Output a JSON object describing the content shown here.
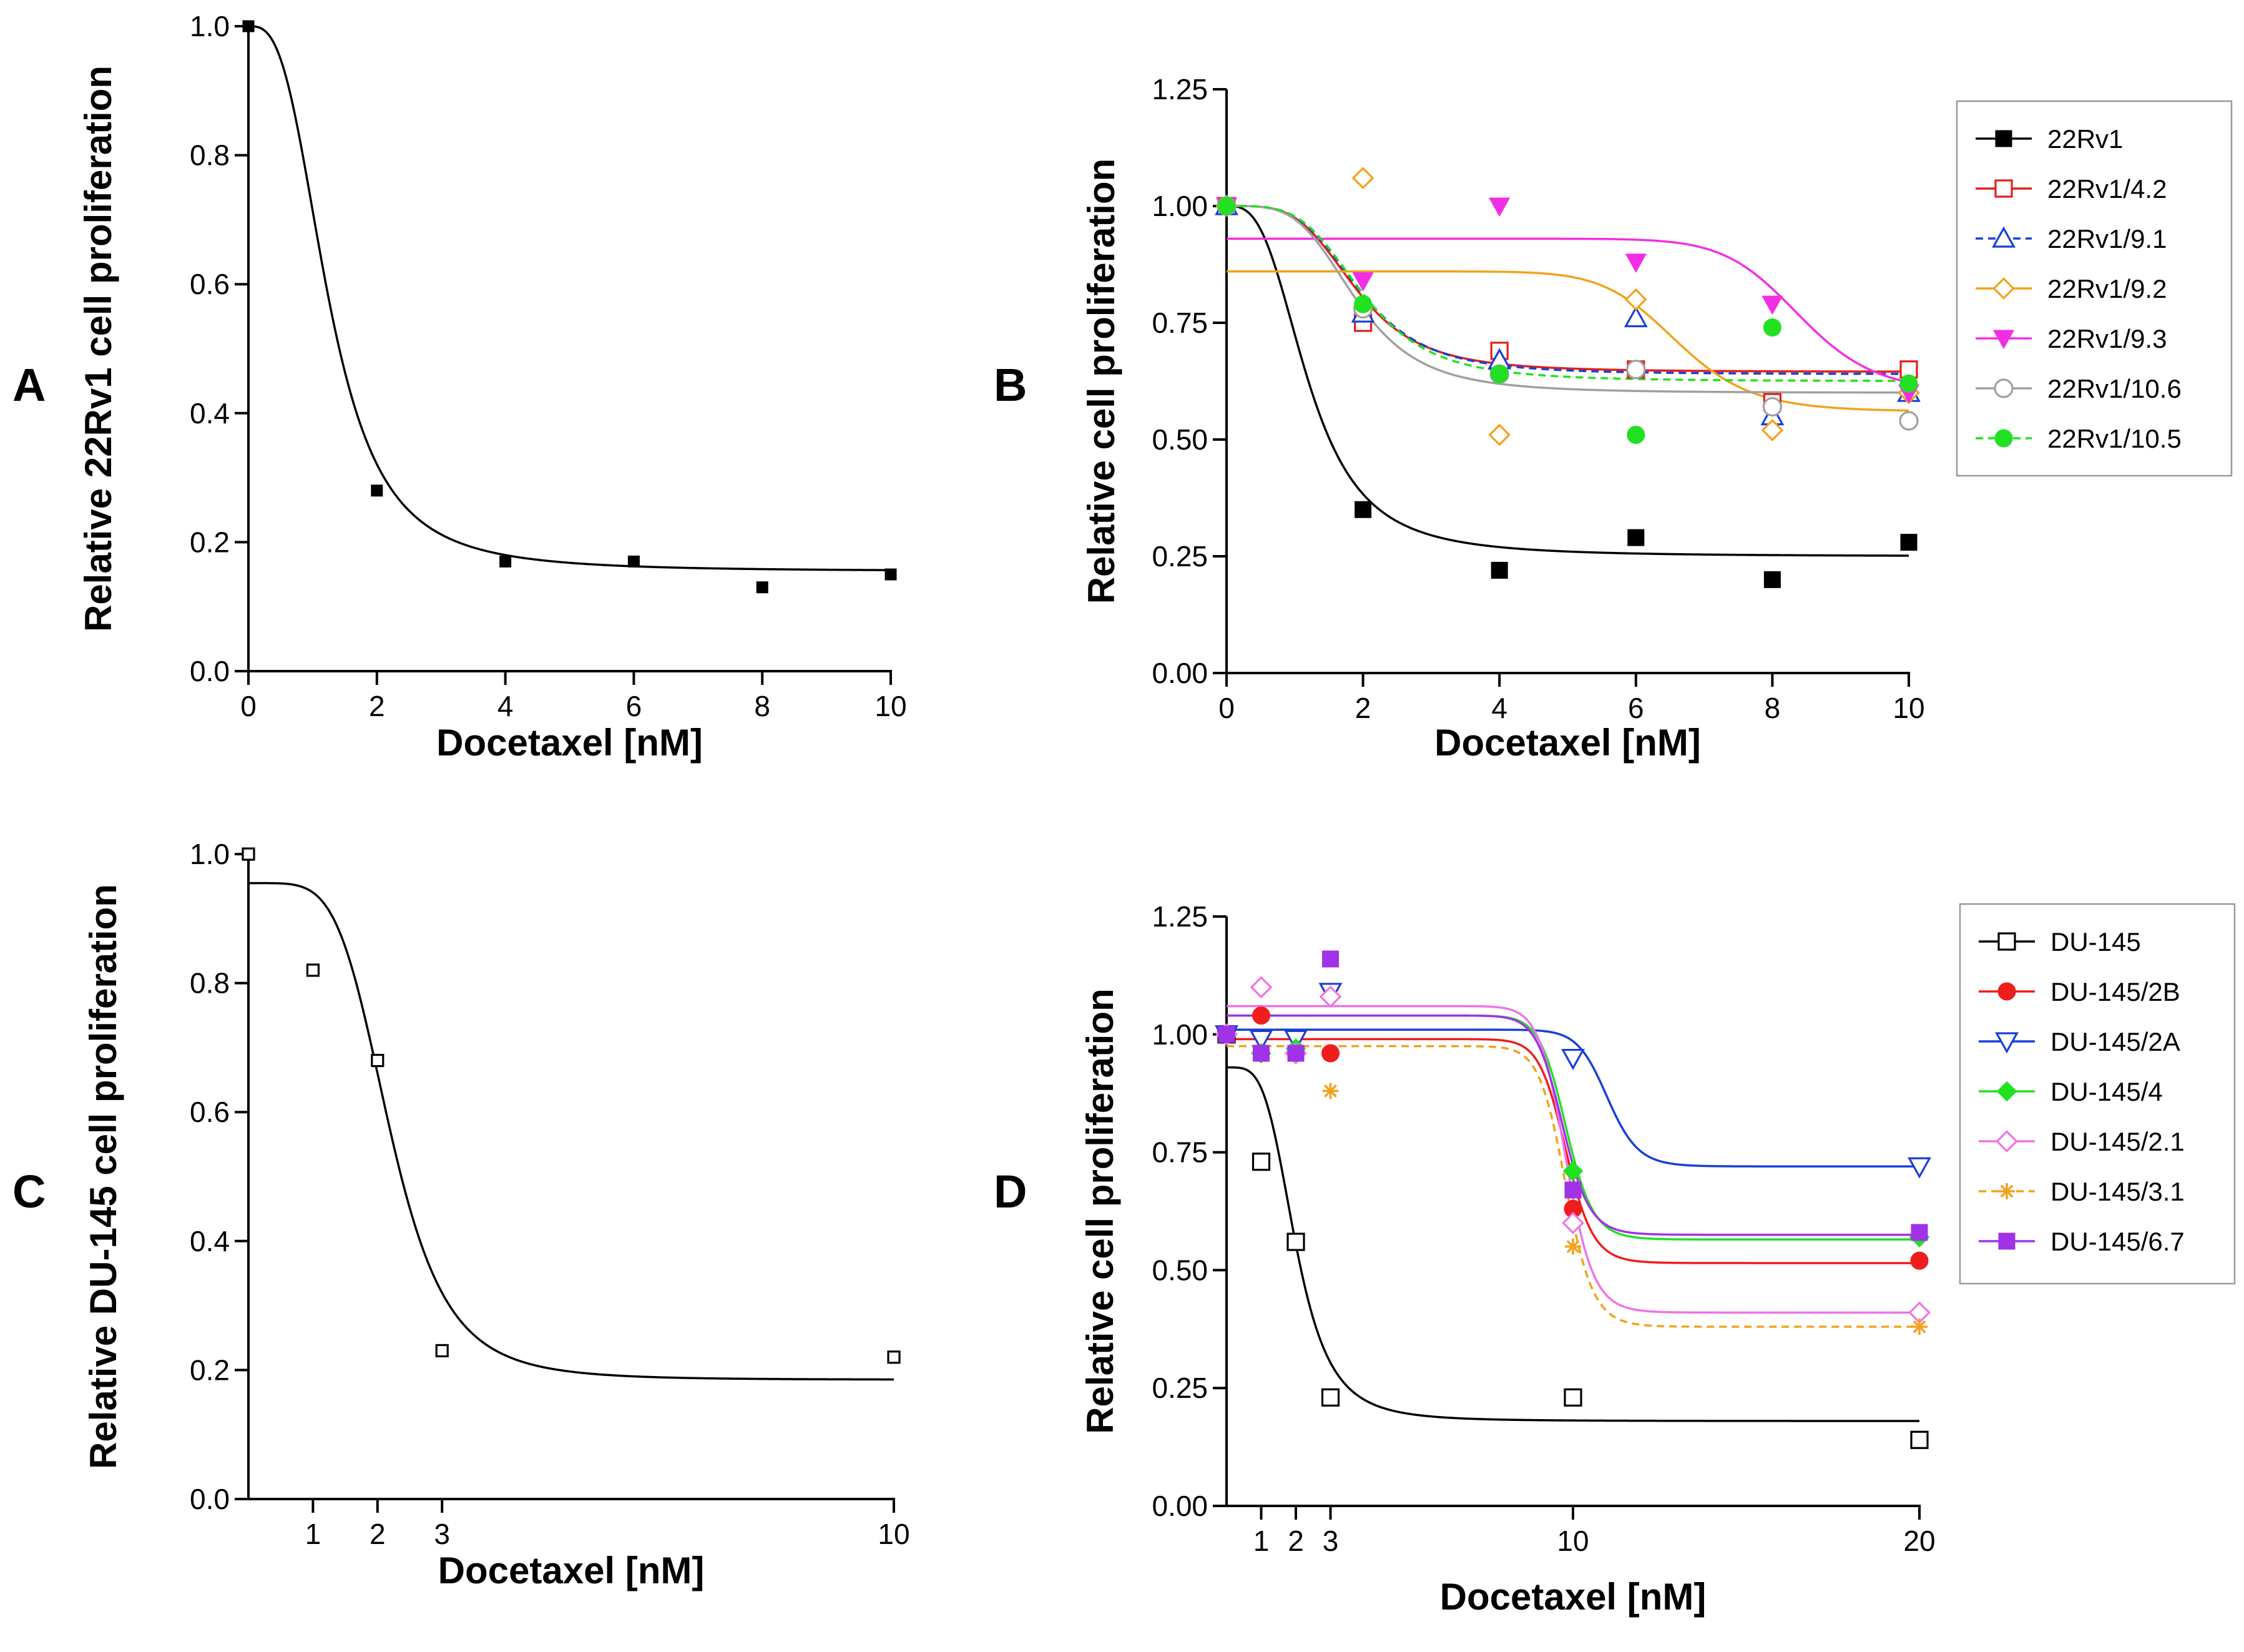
{
  "chart_data": [
    {
      "panel": "A",
      "type": "scatter",
      "xlabel": "Docetaxel [nM]",
      "ylabel": "Relative 22Rv1 cell proliferation",
      "xlim": [
        0,
        10
      ],
      "ylim": [
        0,
        1.0
      ],
      "xticks": [
        0,
        2,
        4,
        6,
        8,
        10
      ],
      "yticks": [
        0.0,
        0.2,
        0.4,
        0.6,
        0.8,
        1.0
      ],
      "xtick_labels": [
        "0",
        "2",
        "4",
        "6",
        "8",
        "10"
      ],
      "ytick_labels": [
        "0.0",
        "0.2",
        "0.4",
        "0.6",
        "0.8",
        "1.0"
      ],
      "legend": false,
      "series": [
        {
          "name": "22Rv1",
          "color": "#000000",
          "marker": "square-filled",
          "dash": false,
          "x": [
            0,
            2,
            4,
            6,
            8,
            10
          ],
          "y": [
            1.0,
            0.28,
            0.17,
            0.17,
            0.13,
            0.15
          ],
          "fit": {
            "top": 1.0,
            "bottom": 0.155,
            "ec50": 1.25,
            "hill": 3.0
          }
        }
      ]
    },
    {
      "panel": "B",
      "type": "scatter",
      "xlabel": "Docetaxel [nM]",
      "ylabel": "Relative cell proliferation",
      "xlim": [
        0,
        10
      ],
      "ylim": [
        0,
        1.25
      ],
      "xticks": [
        0,
        2,
        4,
        6,
        8,
        10
      ],
      "yticks": [
        0.0,
        0.25,
        0.5,
        0.75,
        1.0,
        1.25
      ],
      "xtick_labels": [
        "0",
        "2",
        "4",
        "6",
        "8",
        "10"
      ],
      "ytick_labels": [
        "0.00",
        "0.25",
        "0.50",
        "0.75",
        "1.00",
        "1.25"
      ],
      "legend": true,
      "series": [
        {
          "name": "22Rv1",
          "color": "#000000",
          "marker": "square-filled",
          "dash": false,
          "x": [
            0,
            2,
            4,
            6,
            8,
            10
          ],
          "y": [
            1.0,
            0.35,
            0.22,
            0.29,
            0.2,
            0.28
          ],
          "fit": {
            "top": 1.0,
            "bottom": 0.25,
            "ec50": 1.2,
            "hill": 3.0
          }
        },
        {
          "name": "22Rv1/4.2",
          "color": "#e0201b",
          "marker": "square-open",
          "dash": false,
          "x": [
            0,
            2,
            4,
            6,
            8,
            10
          ],
          "y": [
            1.0,
            0.75,
            0.69,
            0.65,
            0.58,
            0.65
          ],
          "fit": {
            "top": 1.0,
            "bottom": 0.645,
            "ec50": 1.9,
            "hill": 4.0
          }
        },
        {
          "name": "22Rv1/9.1",
          "color": "#1a3fd6",
          "marker": "triangle-open",
          "dash": true,
          "x": [
            0,
            2,
            4,
            6,
            8,
            10
          ],
          "y": [
            1.0,
            0.77,
            0.67,
            0.76,
            0.55,
            0.6
          ],
          "fit": {
            "top": 1.0,
            "bottom": 0.64,
            "ec50": 1.95,
            "hill": 4.0
          }
        },
        {
          "name": "22Rv1/9.2",
          "color": "#f2a21b",
          "marker": "diamond-open",
          "dash": false,
          "x": [
            0,
            2,
            4,
            6,
            8,
            10
          ],
          "y": [
            1.0,
            1.06,
            0.51,
            0.8,
            0.52,
            0.6
          ],
          "fit": {
            "top": 0.86,
            "bottom": 0.56,
            "ec50": 6.6,
            "hill": 12.0
          }
        },
        {
          "name": "22Rv1/9.3",
          "color": "#f22ee4",
          "marker": "triangle-down-filled",
          "dash": false,
          "x": [
            0,
            2,
            4,
            6,
            8,
            10
          ],
          "y": [
            1.0,
            0.84,
            1.0,
            0.88,
            0.79,
            0.6
          ],
          "fit": {
            "top": 0.93,
            "bottom": 0.6,
            "ec50": 8.4,
            "hill": 15.0
          }
        },
        {
          "name": "22Rv1/10.6",
          "color": "#a0a0a0",
          "marker": "circle-open",
          "dash": false,
          "x": [
            0,
            2,
            4,
            6,
            8,
            10
          ],
          "y": [
            1.0,
            0.78,
            0.64,
            0.65,
            0.57,
            0.54
          ],
          "fit": {
            "top": 1.0,
            "bottom": 0.6,
            "ec50": 1.9,
            "hill": 4.0
          }
        },
        {
          "name": "22Rv1/10.5",
          "color": "#22e022",
          "marker": "circle-filled",
          "dash": true,
          "x": [
            0,
            2,
            4,
            6,
            8,
            10
          ],
          "y": [
            1.0,
            0.79,
            0.64,
            0.51,
            0.74,
            0.62
          ],
          "fit": {
            "top": 1.0,
            "bottom": 0.625,
            "ec50": 2.0,
            "hill": 4.0
          }
        }
      ]
    },
    {
      "panel": "C",
      "type": "scatter",
      "xlabel": "Docetaxel [nM]",
      "ylabel": "Relative DU-145 cell proliferation",
      "xlim": [
        0,
        10
      ],
      "ylim": [
        0,
        1.0
      ],
      "xticks": [
        1,
        2,
        3,
        10
      ],
      "yticks": [
        0.0,
        0.2,
        0.4,
        0.6,
        0.8,
        1.0
      ],
      "xtick_labels": [
        "1",
        "2",
        "3",
        "10"
      ],
      "ytick_labels": [
        "0.0",
        "0.2",
        "0.4",
        "0.6",
        "0.8",
        "1.0"
      ],
      "legend": false,
      "series": [
        {
          "name": "DU-145",
          "color": "#000000",
          "marker": "square-open",
          "dash": false,
          "x": [
            0,
            1,
            2,
            3,
            10
          ],
          "y": [
            1.0,
            0.82,
            0.68,
            0.23,
            0.22
          ],
          "fit": {
            "top": 0.955,
            "bottom": 0.185,
            "ec50": 2.2,
            "hill": 5.0
          }
        }
      ]
    },
    {
      "panel": "D",
      "type": "scatter",
      "xlabel": "Docetaxel [nM]",
      "ylabel": "Relative cell proliferation",
      "xlim": [
        0,
        20
      ],
      "ylim": [
        0,
        1.25
      ],
      "xticks": [
        1,
        2,
        3,
        10,
        20
      ],
      "yticks": [
        0.0,
        0.25,
        0.5,
        0.75,
        1.0,
        1.25
      ],
      "xtick_labels": [
        "1",
        "2",
        "3",
        "10",
        "20"
      ],
      "ytick_labels": [
        "0.00",
        "0.25",
        "0.50",
        "0.75",
        "1.00",
        "1.25"
      ],
      "legend": true,
      "series": [
        {
          "name": "DU-145",
          "color": "#000000",
          "marker": "square-open",
          "dash": false,
          "x": [
            0,
            1,
            2,
            3,
            10,
            20
          ],
          "y": [
            1.0,
            0.73,
            0.56,
            0.23,
            0.23,
            0.14
          ],
          "fit": {
            "top": 0.93,
            "bottom": 0.18,
            "ec50": 2.0,
            "hill": 4.0
          }
        },
        {
          "name": "DU-145/2B",
          "color": "#f01d1d",
          "marker": "circle-filled",
          "dash": false,
          "x": [
            0,
            1,
            2,
            3,
            10,
            20
          ],
          "y": [
            1.0,
            1.04,
            0.96,
            0.96,
            0.63,
            0.52
          ],
          "fit": {
            "top": 0.99,
            "bottom": 0.515,
            "ec50": 9.8,
            "hill": 25.0
          }
        },
        {
          "name": "DU-145/2A",
          "color": "#1a3fd6",
          "marker": "triangle-down-open",
          "dash": false,
          "x": [
            0,
            1,
            2,
            3,
            10,
            20
          ],
          "y": [
            1.0,
            0.99,
            0.99,
            1.09,
            0.95,
            0.72
          ],
          "fit": {
            "top": 1.01,
            "bottom": 0.72,
            "ec50": 11.0,
            "hill": 25.0
          }
        },
        {
          "name": "DU-145/4",
          "color": "#22e022",
          "marker": "diamond-filled",
          "dash": false,
          "x": [
            0,
            1,
            2,
            3,
            10,
            20
          ],
          "y": [
            1.0,
            0.96,
            0.97,
            1.08,
            0.71,
            0.57
          ],
          "fit": {
            "top": 1.04,
            "bottom": 0.565,
            "ec50": 9.8,
            "hill": 25.0
          }
        },
        {
          "name": "DU-145/2.1",
          "color": "#f073e6",
          "marker": "diamond-open",
          "dash": false,
          "x": [
            0,
            1,
            2,
            3,
            10,
            20
          ],
          "y": [
            1.0,
            1.1,
            0.96,
            1.08,
            0.6,
            0.41
          ],
          "fit": {
            "top": 1.06,
            "bottom": 0.41,
            "ec50": 9.8,
            "hill": 25.0
          }
        },
        {
          "name": "DU-145/3.1",
          "color": "#f2a21b",
          "marker": "asterisk",
          "dash": true,
          "x": [
            0,
            1,
            2,
            3,
            10,
            20
          ],
          "y": [
            1.0,
            0.96,
            0.96,
            0.88,
            0.55,
            0.38
          ],
          "fit": {
            "top": 0.975,
            "bottom": 0.38,
            "ec50": 9.8,
            "hill": 25.0
          }
        },
        {
          "name": "DU-145/6.7",
          "color": "#a032e8",
          "marker": "square-filled",
          "dash": false,
          "x": [
            0,
            1,
            2,
            3,
            10,
            20
          ],
          "y": [
            1.0,
            0.96,
            0.96,
            1.16,
            0.67,
            0.58
          ],
          "fit": {
            "top": 1.04,
            "bottom": 0.575,
            "ec50": 9.7,
            "hill": 25.0
          }
        }
      ]
    }
  ]
}
